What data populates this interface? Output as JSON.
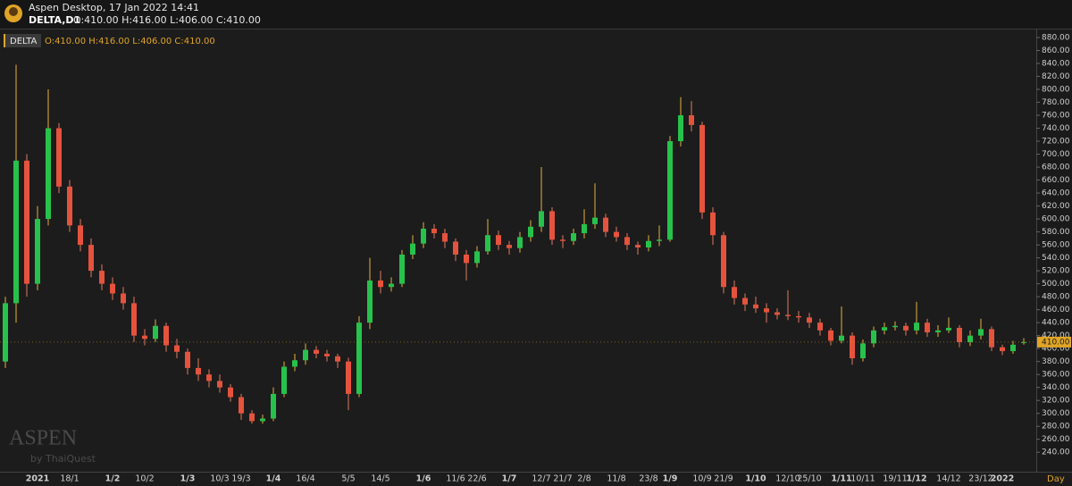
{
  "header": {
    "app": "Aspen Desktop, 17 Jan 2022 14:41",
    "symbol": "DELTA,D1",
    "ohlc": "O:410.00 H:416.00 L:406.00 C:410.00"
  },
  "watermark": {
    "brand": "ASPEN",
    "by": "by ThaiQuest"
  },
  "chart_data": {
    "type": "candlestick",
    "legend_symbol": "DELTA",
    "legend_ohlc": "O:410.00 H:416.00 L:406.00 C:410.00",
    "x_unit": "Day",
    "up_color": "#27c24c",
    "down_color": "#e5533d",
    "categories": [
      null,
      null,
      null,
      "2021",
      null,
      null,
      "18/1",
      null,
      null,
      null,
      "1/2",
      null,
      null,
      "10/2",
      null,
      null,
      null,
      "1/3",
      null,
      null,
      "10/3",
      null,
      "19/3",
      null,
      null,
      "1/4",
      null,
      null,
      "16/4",
      null,
      null,
      null,
      "5/5",
      null,
      null,
      "14/5",
      null,
      null,
      null,
      "1/6",
      null,
      null,
      "11/6",
      null,
      "22/6",
      null,
      null,
      "1/7",
      null,
      null,
      "12/7",
      null,
      "21/7",
      null,
      "2/8",
      null,
      null,
      "11/8",
      null,
      null,
      "23/8",
      null,
      "1/9",
      null,
      null,
      "10/9",
      null,
      "21/9",
      null,
      null,
      "1/10",
      null,
      null,
      "12/10",
      null,
      "25/10",
      null,
      null,
      "1/11",
      null,
      "10/11",
      null,
      null,
      "19/11",
      null,
      "1/12",
      null,
      null,
      "14/12",
      null,
      null,
      "23/12",
      null,
      "2022",
      null,
      null
    ],
    "open": [
      380,
      470,
      690,
      500,
      600,
      740,
      650,
      590,
      560,
      520,
      500,
      485,
      470,
      420,
      415,
      435,
      405,
      395,
      370,
      360,
      350,
      340,
      325,
      300,
      288,
      292,
      330,
      372,
      382,
      398,
      392,
      388,
      380,
      330,
      440,
      505,
      495,
      500,
      545,
      562,
      585,
      578,
      565,
      545,
      532,
      550,
      575,
      560,
      555,
      572,
      588,
      612,
      568,
      566,
      578,
      592,
      602,
      580,
      572,
      560,
      556,
      566,
      568,
      720,
      760,
      745,
      610,
      575,
      495,
      478,
      468,
      462,
      456,
      452,
      450,
      448,
      440,
      428,
      412,
      420,
      385,
      408,
      428,
      433,
      435,
      428,
      440,
      425,
      428,
      432,
      410,
      420,
      430,
      402,
      396,
      410
    ],
    "high": [
      480,
      838,
      700,
      620,
      800,
      748,
      660,
      600,
      570,
      530,
      510,
      495,
      480,
      430,
      445,
      440,
      415,
      400,
      385,
      368,
      360,
      345,
      330,
      305,
      298,
      340,
      380,
      392,
      408,
      404,
      398,
      392,
      386,
      450,
      540,
      520,
      510,
      552,
      575,
      595,
      592,
      585,
      570,
      552,
      558,
      600,
      582,
      566,
      580,
      598,
      680,
      618,
      575,
      585,
      615,
      655,
      608,
      588,
      578,
      565,
      575,
      590,
      728,
      788,
      782,
      750,
      618,
      580,
      505,
      485,
      480,
      470,
      462,
      490,
      458,
      455,
      446,
      432,
      465,
      425,
      414,
      434,
      440,
      442,
      440,
      472,
      446,
      436,
      448,
      436,
      428,
      446,
      434,
      406,
      412,
      416
    ],
    "low": [
      370,
      440,
      480,
      490,
      590,
      640,
      580,
      550,
      510,
      490,
      475,
      460,
      410,
      405,
      410,
      395,
      385,
      360,
      350,
      340,
      332,
      318,
      290,
      284,
      284,
      288,
      325,
      365,
      375,
      385,
      380,
      370,
      305,
      325,
      430,
      485,
      488,
      495,
      538,
      555,
      570,
      555,
      535,
      505,
      525,
      545,
      552,
      545,
      548,
      565,
      580,
      560,
      555,
      560,
      570,
      585,
      572,
      565,
      552,
      545,
      550,
      558,
      565,
      712,
      735,
      600,
      560,
      485,
      468,
      458,
      455,
      440,
      445,
      444,
      440,
      432,
      420,
      405,
      408,
      375,
      380,
      402,
      422,
      428,
      420,
      422,
      418,
      418,
      424,
      402,
      404,
      414,
      396,
      390,
      392,
      406
    ],
    "close": [
      470,
      690,
      500,
      600,
      740,
      650,
      590,
      560,
      520,
      500,
      485,
      470,
      420,
      415,
      435,
      405,
      395,
      370,
      360,
      350,
      340,
      325,
      300,
      288,
      292,
      330,
      372,
      382,
      398,
      392,
      388,
      380,
      330,
      440,
      505,
      495,
      500,
      545,
      562,
      585,
      578,
      565,
      545,
      532,
      550,
      575,
      560,
      555,
      572,
      588,
      612,
      568,
      566,
      578,
      592,
      602,
      580,
      572,
      560,
      556,
      566,
      568,
      720,
      760,
      745,
      610,
      575,
      495,
      478,
      468,
      462,
      456,
      452,
      450,
      448,
      440,
      428,
      412,
      420,
      385,
      408,
      428,
      433,
      435,
      428,
      440,
      425,
      428,
      432,
      410,
      420,
      430,
      402,
      396,
      406,
      410
    ],
    "ylim": [
      221,
      891
    ],
    "yticks": [
      {
        "value": 240,
        "label": "240.00"
      },
      {
        "value": 260,
        "label": "260.00"
      },
      {
        "value": 280,
        "label": "280.00"
      },
      {
        "value": 300,
        "label": "300.00"
      },
      {
        "value": 320,
        "label": "320.00"
      },
      {
        "value": 340,
        "label": "340.00"
      },
      {
        "value": 360,
        "label": "360.00"
      },
      {
        "value": 380,
        "label": "380.00"
      },
      {
        "value": 400,
        "label": "400.00"
      },
      {
        "value": 420,
        "label": "420.00"
      },
      {
        "value": 440,
        "label": "440.00"
      },
      {
        "value": 460,
        "label": "460.00"
      },
      {
        "value": 480,
        "label": "480.00"
      },
      {
        "value": 500,
        "label": "500.00"
      },
      {
        "value": 520,
        "label": "520.00"
      },
      {
        "value": 540,
        "label": "540.00"
      },
      {
        "value": 560,
        "label": "560.00"
      },
      {
        "value": 580,
        "label": "580.00"
      },
      {
        "value": 600,
        "label": "600.00"
      },
      {
        "value": 620,
        "label": "620.00"
      },
      {
        "value": 640,
        "label": "640.00"
      },
      {
        "value": 660,
        "label": "660.00"
      },
      {
        "value": 680,
        "label": "680.00"
      },
      {
        "value": 700,
        "label": "700.00"
      },
      {
        "value": 720,
        "label": "720.00"
      },
      {
        "value": 740,
        "label": "740.00"
      },
      {
        "value": 760,
        "label": "760.00"
      },
      {
        "value": 780,
        "label": "780.00"
      },
      {
        "value": 800,
        "label": "800.00"
      },
      {
        "value": 820,
        "label": "820.00"
      },
      {
        "value": 840,
        "label": "840.00"
      },
      {
        "value": 860,
        "label": "860.00"
      },
      {
        "value": 880,
        "label": "880.00"
      }
    ],
    "last_price": {
      "value": 410,
      "label": "410.00"
    },
    "grid": false
  }
}
